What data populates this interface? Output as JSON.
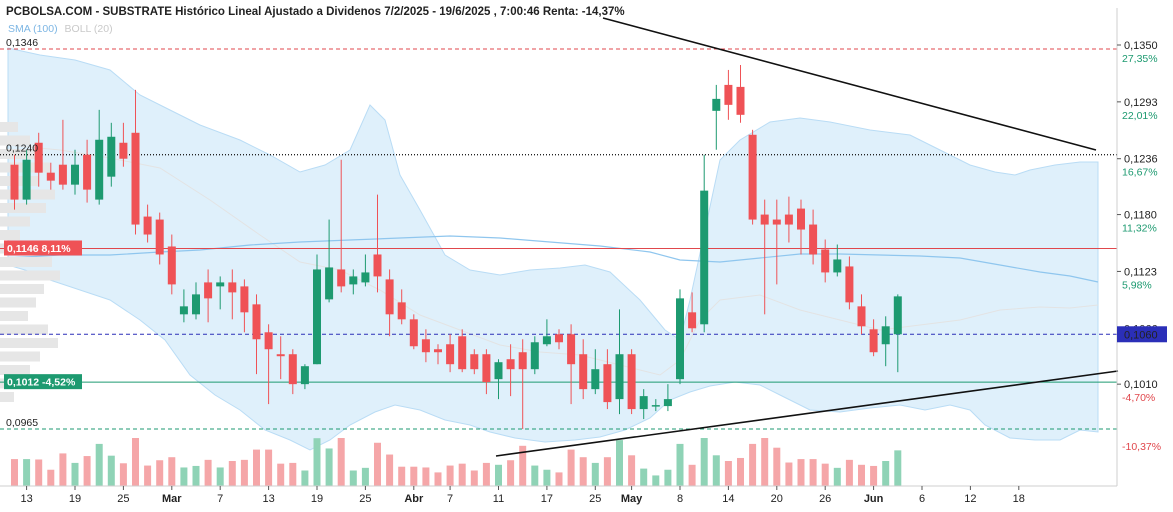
{
  "chart_data": {
    "type": "candlestick",
    "title": "PCBOLSA.COM - SUBSTRATE Histórico Lineal Ajustado a Dividenos 7/2/2025 - 19/6/2025 , 7:00:46 Renta: -14,37%",
    "legend": {
      "sma": "SMA (100)",
      "boll": "BOLL (20)"
    },
    "ylim": [
      0.0925,
      0.1375
    ],
    "price_ticks": [
      {
        "label": "0,1350",
        "pct": "27,35%",
        "value": 0.135,
        "pct_color": "#1d9a70"
      },
      {
        "label": "0,1293",
        "pct": "22,01%",
        "value": 0.1293,
        "pct_color": "#1d9a70"
      },
      {
        "label": "0,1236",
        "pct": "16,67%",
        "value": 0.1236,
        "pct_color": "#1d9a70"
      },
      {
        "label": "0,1180",
        "pct": "11,32%",
        "value": 0.118,
        "pct_color": "#1d9a70"
      },
      {
        "label": "0,1123",
        "pct": "5,98%",
        "value": 0.1123,
        "pct_color": "#1d9a70"
      },
      {
        "label": "0,1066",
        "pct": "",
        "value": 0.1066,
        "pct_color": "#1d9a70"
      },
      {
        "label": "0,1010",
        "pct": "-4,70%",
        "value": 0.101,
        "pct_color": "#e0474c"
      },
      {
        "label": "",
        "pct": "-10,37%",
        "value": 0.095,
        "pct_color": "#e0474c"
      }
    ],
    "current_price": {
      "label": "0,1060",
      "value": 0.106
    },
    "levels": [
      {
        "label": "0,1346",
        "value": 0.1346,
        "style": "dashed-red"
      },
      {
        "label": "0,1240",
        "value": 0.124,
        "style": "dotted-black"
      },
      {
        "label": "0,1146  8,11%",
        "value": 0.1146,
        "style": "solid-red"
      },
      {
        "label": "0,1012  -4,52%",
        "value": 0.1012,
        "style": "solid-green"
      },
      {
        "label": "0,0965",
        "value": 0.0965,
        "style": "dashed-green"
      }
    ],
    "x_ticks": [
      {
        "label": "13",
        "idx": 1,
        "bold": false
      },
      {
        "label": "19",
        "idx": 5,
        "bold": false
      },
      {
        "label": "25",
        "idx": 9,
        "bold": false
      },
      {
        "label": "Mar",
        "idx": 13,
        "bold": true
      },
      {
        "label": "7",
        "idx": 17,
        "bold": false
      },
      {
        "label": "13",
        "idx": 21,
        "bold": false
      },
      {
        "label": "19",
        "idx": 25,
        "bold": false
      },
      {
        "label": "25",
        "idx": 29,
        "bold": false
      },
      {
        "label": "Abr",
        "idx": 33,
        "bold": true
      },
      {
        "label": "7",
        "idx": 36,
        "bold": false
      },
      {
        "label": "11",
        "idx": 40,
        "bold": false
      },
      {
        "label": "17",
        "idx": 44,
        "bold": false
      },
      {
        "label": "25",
        "idx": 48,
        "bold": false
      },
      {
        "label": "May",
        "idx": 51,
        "bold": true
      },
      {
        "label": "8",
        "idx": 55,
        "bold": false
      },
      {
        "label": "14",
        "idx": 59,
        "bold": false
      },
      {
        "label": "20",
        "idx": 63,
        "bold": false
      },
      {
        "label": "26",
        "idx": 67,
        "bold": false
      },
      {
        "label": "Jun",
        "idx": 71,
        "bold": true
      },
      {
        "label": "6",
        "idx": 75,
        "bold": false
      },
      {
        "label": "12",
        "idx": 79,
        "bold": false
      },
      {
        "label": "18",
        "idx": 83,
        "bold": false
      }
    ],
    "candles": [
      [
        0.123,
        0.1195,
        0.124,
        0.1185
      ],
      [
        0.1195,
        0.1235,
        0.1245,
        0.119
      ],
      [
        0.1252,
        0.1222,
        0.1262,
        0.1208
      ],
      [
        0.1222,
        0.1214,
        0.1232,
        0.1205
      ],
      [
        0.123,
        0.121,
        0.1275,
        0.1205
      ],
      [
        0.121,
        0.123,
        0.1245,
        0.12
      ],
      [
        0.124,
        0.1205,
        0.1255,
        0.1192
      ],
      [
        0.1195,
        0.1255,
        0.1285,
        0.119
      ],
      [
        0.1218,
        0.1258,
        0.1272,
        0.1208
      ],
      [
        0.1252,
        0.1236,
        0.1272,
        0.1228
      ],
      [
        0.1262,
        0.117,
        0.1305,
        0.116
      ],
      [
        0.1178,
        0.116,
        0.119,
        0.1152
      ],
      [
        0.1175,
        0.114,
        0.1182,
        0.113
      ],
      [
        0.1148,
        0.111,
        0.116,
        0.11
      ],
      [
        0.108,
        0.1088,
        0.1105,
        0.1072
      ],
      [
        0.108,
        0.11,
        0.1112,
        0.1075
      ],
      [
        0.1112,
        0.1096,
        0.1125,
        0.1072
      ],
      [
        0.1108,
        0.1112,
        0.1118,
        0.1085
      ],
      [
        0.1112,
        0.1102,
        0.1125,
        0.1075
      ],
      [
        0.1108,
        0.1082,
        0.1115,
        0.1062
      ],
      [
        0.109,
        0.1055,
        0.11,
        0.102
      ],
      [
        0.1062,
        0.1045,
        0.107,
        0.099
      ],
      [
        0.104,
        0.1038,
        0.1058,
        0.1015
      ],
      [
        0.104,
        0.101,
        0.1045,
        0.1
      ],
      [
        0.101,
        0.1028,
        0.103,
        0.1005
      ],
      [
        0.103,
        0.1125,
        0.114,
        0.103
      ],
      [
        0.1095,
        0.1127,
        0.1175,
        0.1092
      ],
      [
        0.1125,
        0.1108,
        0.1235,
        0.1102
      ],
      [
        0.111,
        0.1118,
        0.1125,
        0.11
      ],
      [
        0.1112,
        0.1122,
        0.114,
        0.1108
      ],
      [
        0.114,
        0.1118,
        0.12,
        0.1102
      ],
      [
        0.1115,
        0.108,
        0.1125,
        0.1058
      ],
      [
        0.1092,
        0.1075,
        0.1105,
        0.107
      ],
      [
        0.1075,
        0.1048,
        0.108,
        0.1045
      ],
      [
        0.1055,
        0.1042,
        0.1065,
        0.1032
      ],
      [
        0.1045,
        0.1042,
        0.105,
        0.103
      ],
      [
        0.105,
        0.103,
        0.106,
        0.1022
      ],
      [
        0.1058,
        0.1025,
        0.1065,
        0.1022
      ],
      [
        0.104,
        0.1025,
        0.1045,
        0.102
      ],
      [
        0.104,
        0.1012,
        0.1045,
        0.1
      ],
      [
        0.1015,
        0.1032,
        0.1035,
        0.0995
      ],
      [
        0.1035,
        0.1025,
        0.105,
        0.0998
      ],
      [
        0.1042,
        0.1025,
        0.1055,
        0.0965
      ],
      [
        0.1025,
        0.1052,
        0.1058,
        0.102
      ],
      [
        0.105,
        0.1058,
        0.1075,
        0.1048
      ],
      [
        0.106,
        0.1052,
        0.1065,
        0.1045
      ],
      [
        0.106,
        0.103,
        0.107,
        0.099
      ],
      [
        0.104,
        0.1005,
        0.1055,
        0.0995
      ],
      [
        0.1005,
        0.1025,
        0.1045,
        0.1
      ],
      [
        0.103,
        0.0992,
        0.1045,
        0.0985
      ],
      [
        0.0995,
        0.104,
        0.1085,
        0.098
      ],
      [
        0.104,
        0.0985,
        0.1045,
        0.098
      ],
      [
        0.0985,
        0.0998,
        0.1005,
        0.0975
      ],
      [
        0.0988,
        0.0989,
        0.0995,
        0.0983
      ],
      [
        0.0988,
        0.0995,
        0.101,
        0.0983
      ],
      [
        0.1015,
        0.1096,
        0.1105,
        0.101
      ],
      [
        0.1082,
        0.1066,
        0.1102,
        0.1062
      ],
      [
        0.107,
        0.1204,
        0.124,
        0.1062
      ],
      [
        0.1284,
        0.1296,
        0.131,
        0.1245
      ],
      [
        0.131,
        0.129,
        0.1325,
        0.1275
      ],
      [
        0.1308,
        0.128,
        0.133,
        0.1272
      ],
      [
        0.126,
        0.1175,
        0.1265,
        0.117
      ],
      [
        0.118,
        0.117,
        0.1195,
        0.108
      ],
      [
        0.1175,
        0.117,
        0.1195,
        0.111
      ],
      [
        0.118,
        0.117,
        0.1198,
        0.1152
      ],
      [
        0.1186,
        0.1165,
        0.1195,
        0.114
      ],
      [
        0.117,
        0.114,
        0.1185,
        0.113
      ],
      [
        0.1145,
        0.1122,
        0.1155,
        0.1112
      ],
      [
        0.1122,
        0.1135,
        0.115,
        0.1118
      ],
      [
        0.1128,
        0.1092,
        0.1138,
        0.1085
      ],
      [
        0.1088,
        0.1068,
        0.11,
        0.106
      ],
      [
        0.1065,
        0.1042,
        0.1075,
        0.1038
      ],
      [
        0.105,
        0.1068,
        0.1078,
        0.1028
      ],
      [
        0.106,
        0.1098,
        0.11,
        0.1022
      ]
    ]
  }
}
